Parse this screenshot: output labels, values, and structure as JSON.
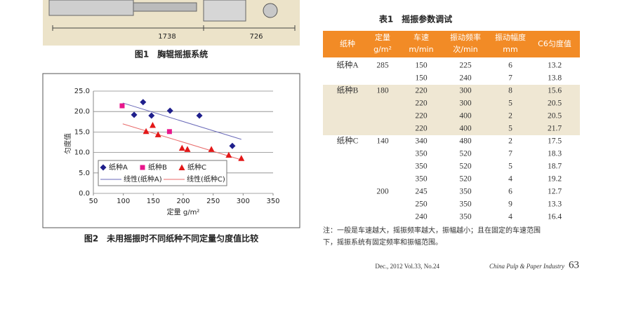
{
  "figure1": {
    "dims": [
      "1738",
      "726"
    ],
    "caption": "图1　胸辊摇振系统"
  },
  "chart_data": {
    "type": "scatter",
    "caption": "图2　未用摇振时不同纸种不同定量匀度值比较",
    "x_label": "定量 g/m²",
    "y_label": "匀度值",
    "xlim": [
      50,
      350
    ],
    "xticks": [
      50,
      100,
      150,
      200,
      250,
      300,
      350
    ],
    "ylim": [
      0,
      25
    ],
    "yticks": [
      {
        "value": 0,
        "label": "0.0"
      },
      {
        "value": 5,
        "label": "5.0"
      },
      {
        "value": 10,
        "label": "10.0"
      },
      {
        "value": 15,
        "label": "15.0"
      },
      {
        "value": 20,
        "label": "20.0"
      },
      {
        "value": 25,
        "label": "25.0"
      }
    ],
    "grid": true,
    "series": [
      {
        "name": "纸种A",
        "color": "#1f1f8c",
        "marker": "diamond",
        "x": [
          118,
          133,
          147,
          178,
          227,
          282
        ],
        "values": [
          19.2,
          22.3,
          19.0,
          20.2,
          19.0,
          11.6
        ]
      },
      {
        "name": "纸种B",
        "color": "#e8168c",
        "marker": "square",
        "x": [
          98,
          177
        ],
        "values": [
          21.4,
          15.1
        ]
      },
      {
        "name": "纸种C",
        "color": "#e31818",
        "marker": "triangle",
        "x": [
          138,
          149,
          158,
          198,
          207,
          247,
          276,
          297
        ],
        "values": [
          15.2,
          16.7,
          14.4,
          11.1,
          10.8,
          10.8,
          9.4,
          8.6
        ]
      }
    ],
    "trendlines": [
      {
        "name": "线性(纸种A)",
        "color": "#6a6ab8",
        "x": [
          99,
          297
        ],
        "values": [
          22.1,
          13.2
        ]
      },
      {
        "name": "线性(纸种C)",
        "color": "#e86a6a",
        "x": [
          99,
          297
        ],
        "values": [
          17.0,
          8.2
        ]
      }
    ]
  },
  "table": {
    "title": "表1　摇振参数调试",
    "header": [
      [
        "纸种"
      ],
      [
        "定量",
        "g/m²"
      ],
      [
        "车速",
        "m/min"
      ],
      [
        "振动频率",
        "次/min"
      ],
      [
        "振动幅度",
        "mm"
      ],
      [
        "C6匀度值"
      ]
    ],
    "rows": [
      [
        "纸种A",
        "285",
        "150",
        "225",
        "6",
        "13.2"
      ],
      [
        null,
        null,
        "150",
        "240",
        "7",
        "13.8"
      ],
      [
        "纸种B",
        "180",
        "220",
        "300",
        "8",
        "15.6"
      ],
      [
        null,
        null,
        "220",
        "300",
        "5",
        "20.5"
      ],
      [
        null,
        null,
        "220",
        "400",
        "2",
        "20.5"
      ],
      [
        null,
        null,
        "220",
        "400",
        "5",
        "21.7"
      ],
      [
        "纸种C",
        "140",
        "340",
        "480",
        "2",
        "17.5"
      ],
      [
        null,
        null,
        "350",
        "520",
        "7",
        "18.3"
      ],
      [
        null,
        null,
        "350",
        "520",
        "5",
        "18.7"
      ],
      [
        null,
        null,
        "350",
        "520",
        "4",
        "19.2"
      ],
      [
        null,
        "200",
        "245",
        "350",
        "6",
        "12.7"
      ],
      [
        null,
        null,
        "250",
        "350",
        "9",
        "13.3"
      ],
      [
        null,
        null,
        "240",
        "350",
        "4",
        "16.4"
      ]
    ],
    "note": [
      "注：一般是车速越大，摇振频率越大，振幅越小；且在固定的车速范围",
      "下，摇振系统有固定频率和振幅范围。"
    ]
  },
  "footer": {
    "issue": "Dec., 2012  Vol.33, No.24",
    "journal": "China Pulp & Paper Industry",
    "page": "63"
  }
}
